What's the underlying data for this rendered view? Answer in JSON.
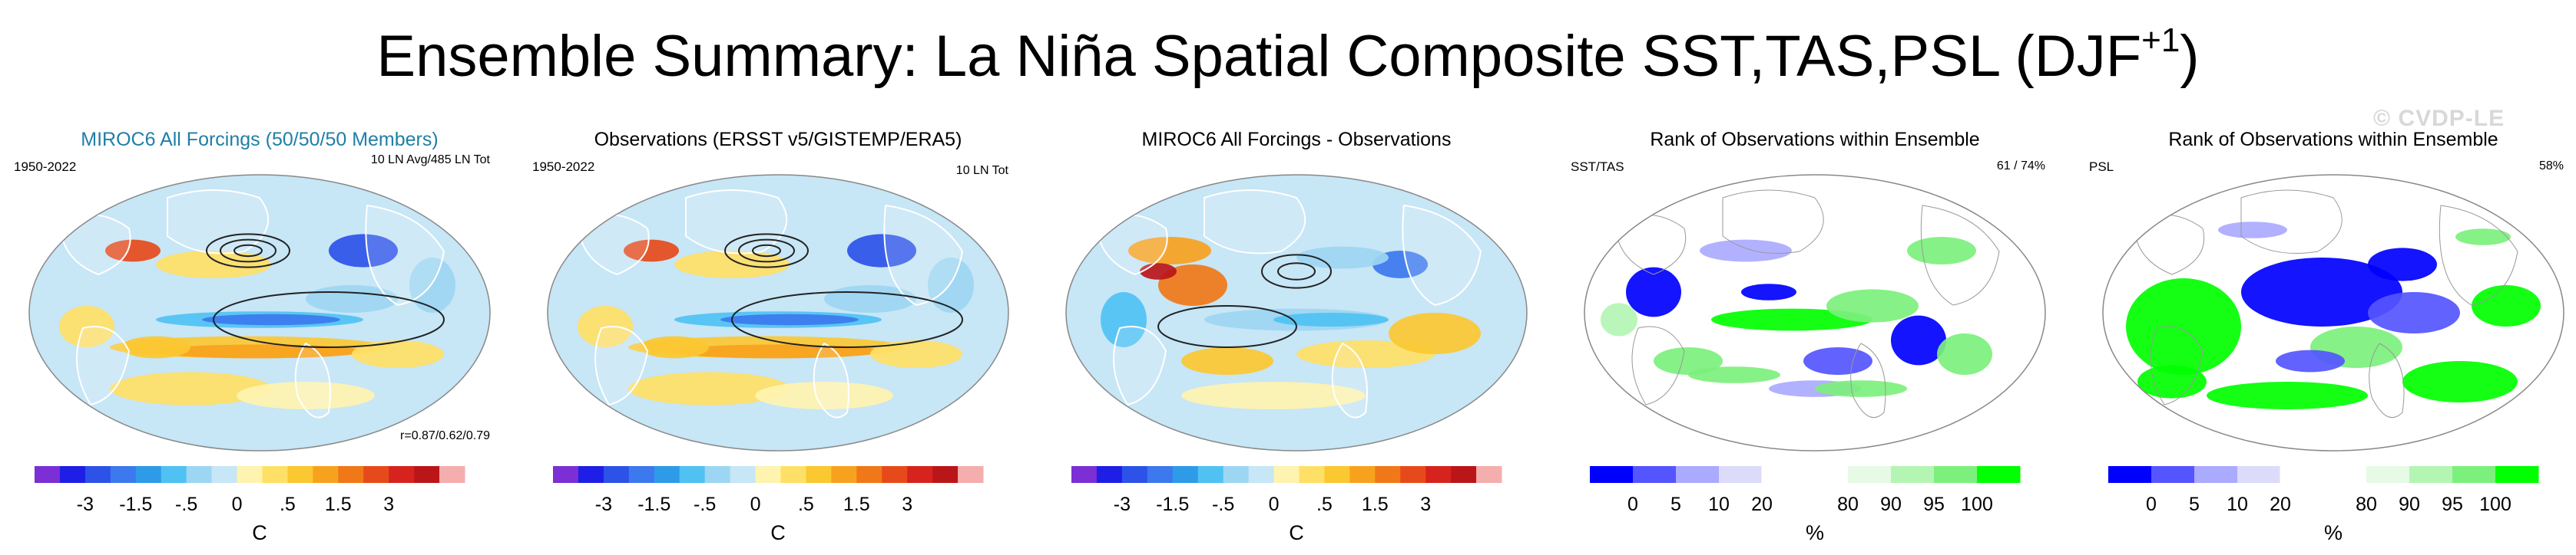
{
  "title": {
    "main": "Ensemble Summary: La Niña Spatial Composite SST,TAS,PSL (DJF",
    "sup": "+1",
    "close": ")"
  },
  "watermark": "© CVDP-LE",
  "colors": {
    "diverging": [
      "#7B2FD4",
      "#1E1EE6",
      "#2C52E8",
      "#3C78EE",
      "#2E9BE8",
      "#4FC2F3",
      "#9DD6F2",
      "#C7E6F6",
      "#FFF3B0",
      "#FFE066",
      "#FBC832",
      "#F7A21E",
      "#F07818",
      "#E64A1A",
      "#D7231E",
      "#BA1619",
      "#F4AEAE"
    ],
    "rank": [
      "#0000ff",
      "#5555ff",
      "#aaaaff",
      "#dcdcfa",
      "#ffffff",
      "#ffffff",
      "#e6fae6",
      "#b4f5b4",
      "#7cf07c",
      "#00ff00"
    ],
    "ocean": "#C7E6F6",
    "land": "#ffffff"
  },
  "panels": [
    {
      "title": "MIROC6 All Forcings (50/50/50 Members)",
      "title_color": "blue",
      "left_label": "1950-2022",
      "right_label": "10 LN Avg/485 LN Tot",
      "bottom_label": "r=0.87/0.62/0.79",
      "unit": "C"
    },
    {
      "title": "Observations (ERSST v5/GISTEMP/ERA5)",
      "left_label": "1950-2022",
      "right_label": "10 LN Tot",
      "unit": "C"
    },
    {
      "title": "MIROC6 All Forcings - Observations",
      "unit": "C"
    },
    {
      "title": "Rank of Observations within Ensemble",
      "left_label": "SST/TAS",
      "right_label": "61 /  74%",
      "unit": "%"
    },
    {
      "title": "Rank of Observations within Ensemble",
      "left_label": "PSL",
      "right_label": "58%",
      "unit": "%"
    }
  ],
  "chart_data": [
    {
      "type": "heatmap",
      "title": "MIROC6 All Forcings (50/50/50 Members)",
      "subtitle": "1950-2022",
      "annotation": "10 LN Avg/485 LN Tot",
      "stat": "r=0.87/0.62/0.79",
      "variable": "SST/TAS anomaly with PSL contours",
      "colorbar_ticks": [
        "-3",
        "-1.5",
        "-.5",
        "0",
        ".5",
        "1.5",
        "3"
      ],
      "colorbar_levels": [
        -4,
        -3,
        -2,
        -1.5,
        -1,
        -0.5,
        -0.25,
        0,
        0.25,
        0.5,
        1,
        1.5,
        2,
        3,
        4
      ],
      "colorbar_label": "C"
    },
    {
      "type": "heatmap",
      "title": "Observations (ERSST v5/GISTEMP/ERA5)",
      "subtitle": "1950-2022",
      "annotation": "10 LN Tot",
      "variable": "SST/TAS anomaly with PSL contours",
      "colorbar_ticks": [
        "-3",
        "-1.5",
        "-.5",
        "0",
        ".5",
        "1.5",
        "3"
      ],
      "colorbar_levels": [
        -4,
        -3,
        -2,
        -1.5,
        -1,
        -0.5,
        -0.25,
        0,
        0.25,
        0.5,
        1,
        1.5,
        2,
        3,
        4
      ],
      "colorbar_label": "C"
    },
    {
      "type": "heatmap",
      "title": "MIROC6 All Forcings - Observations",
      "variable": "SST/TAS difference with PSL contours",
      "colorbar_ticks": [
        "-3",
        "-1.5",
        "-.5",
        "0",
        ".5",
        "1.5",
        "3"
      ],
      "colorbar_levels": [
        -4,
        -3,
        -2,
        -1.5,
        -1,
        -0.5,
        -0.25,
        0,
        0.25,
        0.5,
        1,
        1.5,
        2,
        3,
        4
      ],
      "colorbar_label": "C"
    },
    {
      "type": "heatmap",
      "title": "Rank of Observations within Ensemble",
      "subtitle": "SST/TAS",
      "annotation": "61 /  74%",
      "colorbar_ticks": [
        "0",
        "5",
        "10",
        "20",
        "80",
        "90",
        "95",
        "100"
      ],
      "colorbar_levels": [
        0,
        5,
        10,
        20,
        80,
        90,
        95,
        100
      ],
      "colorbar_label": "%"
    },
    {
      "type": "heatmap",
      "title": "Rank of Observations within Ensemble",
      "subtitle": "PSL",
      "annotation": "58%",
      "colorbar_ticks": [
        "0",
        "5",
        "10",
        "20",
        "80",
        "90",
        "95",
        "100"
      ],
      "colorbar_levels": [
        0,
        5,
        10,
        20,
        80,
        90,
        95,
        100
      ],
      "colorbar_label": "%"
    }
  ]
}
